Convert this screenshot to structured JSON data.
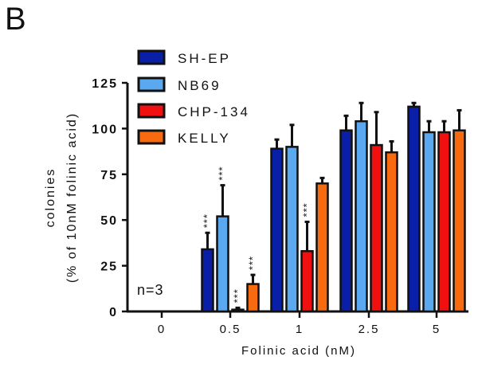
{
  "panel_label": "B",
  "chart_data": {
    "type": "bar",
    "title": "",
    "xlabel": "Folinic acid (nM)",
    "ylabel_lines": [
      "colonies",
      "(% of 10nM folinic acid)"
    ],
    "ylim": [
      0,
      125
    ],
    "yticks": [
      0,
      25,
      50,
      75,
      100,
      125
    ],
    "categories": [
      "0",
      "0.5",
      "1",
      "2.5",
      "5"
    ],
    "legend_position": "top-left",
    "annotation": "n=3",
    "significance_label": "***",
    "series": [
      {
        "name": "SH-EP",
        "color": "#0a1fa8",
        "values": [
          0,
          34,
          89,
          99,
          112
        ],
        "errors": [
          0,
          9,
          5,
          8,
          2
        ],
        "significance": [
          false,
          true,
          false,
          false,
          false
        ]
      },
      {
        "name": "NB69",
        "color": "#5aa8f0",
        "values": [
          0,
          52,
          90,
          104,
          98
        ],
        "errors": [
          0,
          17,
          12,
          10,
          6
        ],
        "significance": [
          false,
          true,
          false,
          false,
          false
        ]
      },
      {
        "name": "CHP-134",
        "color": "#f01010",
        "values": [
          0,
          1,
          33,
          91,
          98
        ],
        "errors": [
          0,
          1,
          16,
          18,
          6
        ],
        "significance": [
          false,
          true,
          true,
          false,
          false
        ]
      },
      {
        "name": "KELLY",
        "color": "#f86a10",
        "values": [
          0,
          15,
          70,
          87,
          99
        ],
        "errors": [
          0,
          5,
          3,
          6,
          11
        ],
        "significance": [
          false,
          true,
          false,
          false,
          false
        ]
      }
    ]
  }
}
